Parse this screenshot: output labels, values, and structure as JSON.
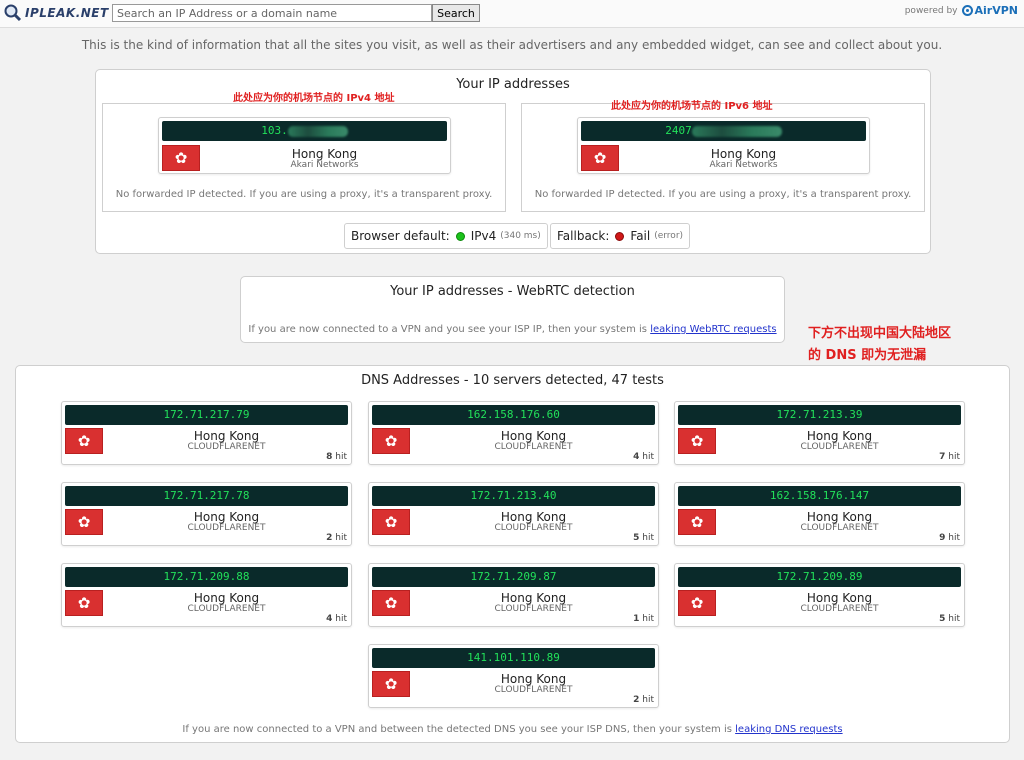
{
  "header": {
    "logo_text": "IPLEAK.NET",
    "search_placeholder": "Search an IP Address or a domain name",
    "search_button": "Search",
    "powered_by": "powered by",
    "brand": "AirVPN"
  },
  "intro": "This is the kind of information that all the sites you visit, as well as their advertisers and any embedded widget, can see and collect about you.",
  "ip_section": {
    "title": "Your IP addresses",
    "ipv4": {
      "note": "此处应为你的机场节点的 IPv4 地址",
      "ip_prefix": "103.",
      "city": "Hong Kong",
      "org": "Akari Networks",
      "forwarded": "No forwarded IP detected. If you are using a proxy, it's a transparent proxy."
    },
    "ipv6": {
      "note": "此处应为你的机场节点的 IPv6 地址",
      "ip_prefix": "2407",
      "city": "Hong Kong",
      "org": "Akari Networks",
      "forwarded": "No forwarded IP detected. If you are using a proxy, it's a transparent proxy."
    },
    "browser_default_label": "Browser default:",
    "browser_default_value": "IPv4",
    "browser_default_ms": "(340 ms)",
    "fallback_label": "Fallback:",
    "fallback_value": "Fail",
    "fallback_detail": "(error)"
  },
  "webrtc": {
    "title": "Your IP addresses - WebRTC detection",
    "text": "If you are now connected to a VPN and you see your ISP IP, then your system is",
    "link": "leaking WebRTC requests"
  },
  "annotation": {
    "line1": "下方不出现中国大陆地区",
    "line2": "的 DNS 即为无泄漏"
  },
  "dns": {
    "title": "DNS Addresses - 10 servers detected, 47 tests",
    "servers": [
      {
        "ip": "172.71.217.79",
        "city": "Hong Kong",
        "org": "CLOUDFLARENET",
        "hits": "8",
        "hit_label": "hit"
      },
      {
        "ip": "162.158.176.60",
        "city": "Hong Kong",
        "org": "CLOUDFLARENET",
        "hits": "4",
        "hit_label": "hit"
      },
      {
        "ip": "172.71.213.39",
        "city": "Hong Kong",
        "org": "CLOUDFLARENET",
        "hits": "7",
        "hit_label": "hit"
      },
      {
        "ip": "172.71.217.78",
        "city": "Hong Kong",
        "org": "CLOUDFLARENET",
        "hits": "2",
        "hit_label": "hit"
      },
      {
        "ip": "172.71.213.40",
        "city": "Hong Kong",
        "org": "CLOUDFLARENET",
        "hits": "5",
        "hit_label": "hit"
      },
      {
        "ip": "162.158.176.147",
        "city": "Hong Kong",
        "org": "CLOUDFLARENET",
        "hits": "9",
        "hit_label": "hit"
      },
      {
        "ip": "172.71.209.88",
        "city": "Hong Kong",
        "org": "CLOUDFLARENET",
        "hits": "4",
        "hit_label": "hit"
      },
      {
        "ip": "172.71.209.87",
        "city": "Hong Kong",
        "org": "CLOUDFLARENET",
        "hits": "1",
        "hit_label": "hit"
      },
      {
        "ip": "172.71.209.89",
        "city": "Hong Kong",
        "org": "CLOUDFLARENET",
        "hits": "5",
        "hit_label": "hit"
      },
      {
        "ip": "141.101.110.89",
        "city": "Hong Kong",
        "org": "CLOUDFLARENET",
        "hits": "2",
        "hit_label": "hit"
      }
    ],
    "footer_text": "If you are now connected to a VPN and between the detected DNS you see your ISP DNS, then your system is",
    "footer_link": "leaking DNS requests"
  },
  "colors": {
    "ip_bar_bg": "#0a2a2a",
    "ip_text": "#22e05a",
    "flag_red": "#d93030",
    "note_red": "#e02020",
    "link_blue": "#2233cc"
  },
  "icons": {
    "flag": "hong-kong-flag-icon",
    "logo": "magnifier-icon",
    "status_ok": "green-dot-icon",
    "status_fail": "red-dot-icon"
  }
}
